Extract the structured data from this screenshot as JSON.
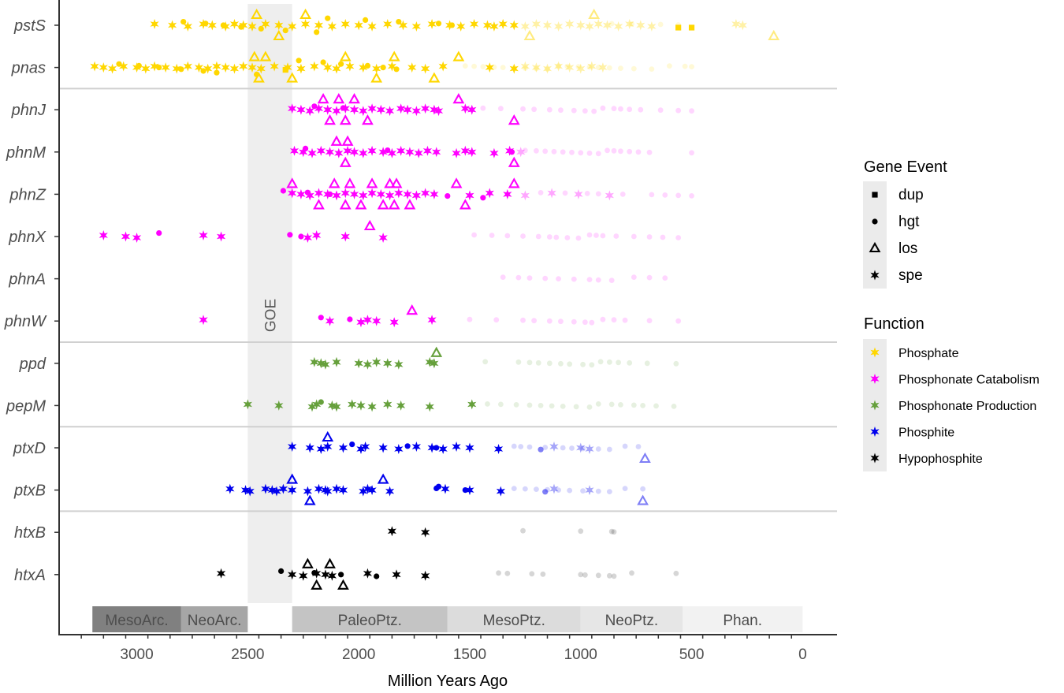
{
  "chart_data": {
    "type": "scatter",
    "xlabel": "Million Years Ago",
    "xlim": [
      3350,
      -155
    ],
    "xticks": [
      3000,
      2500,
      2000,
      1500,
      1000,
      500,
      0
    ],
    "tick_labels": [
      "3000",
      "2500",
      "2000",
      "1500",
      "1000",
      "500",
      "0"
    ],
    "goe": {
      "label": "GOE",
      "start": 2500,
      "end": 2300
    },
    "eras": [
      {
        "label": "MesoArc.",
        "start": 3200,
        "end": 2800,
        "color": "#808080"
      },
      {
        "label": "NeoArc.",
        "start": 2800,
        "end": 2500,
        "color": "#a6a6a6"
      },
      {
        "label": "PaleoPtz.",
        "start": 2300,
        "end": 1600,
        "color": "#c4c4c4"
      },
      {
        "label": "MesoPtz.",
        "start": 1600,
        "end": 1000,
        "color": "#dcdcdc"
      },
      {
        "label": "NeoPtz.",
        "start": 1000,
        "end": 541,
        "color": "#e6e6e6"
      },
      {
        "label": "Phan.",
        "start": 541,
        "end": 0,
        "color": "#f2f2f2"
      }
    ],
    "genes": [
      "pstS",
      "pnas",
      "phnJ",
      "phnM",
      "phnZ",
      "phnX",
      "phnA",
      "phnW",
      "ppd",
      "pepM",
      "ptxD",
      "ptxB",
      "htxB",
      "htxA"
    ],
    "gene_function": {
      "pstS": "Phosphate",
      "pnas": "Phosphate",
      "phnJ": "Phosphonate Catabolism",
      "phnM": "Phosphonate Catabolism",
      "phnZ": "Phosphonate Catabolism",
      "phnX": "Phosphonate Catabolism",
      "phnA": "Phosphonate Catabolism",
      "phnW": "Phosphonate Catabolism",
      "ppd": "Phosphonate Production",
      "pepM": "Phosphonate Production",
      "ptxD": "Phosphite",
      "ptxB": "Phosphite",
      "htxB": "Hypophosphite",
      "htxA": "Hypophosphite"
    },
    "separators_after": [
      "pnas",
      "phnW",
      "pepM",
      "ptxB"
    ],
    "legend_event": {
      "title": "Gene Event",
      "items": [
        {
          "key": "dup",
          "label": "dup"
        },
        {
          "key": "hgt",
          "label": "hgt"
        },
        {
          "key": "los",
          "label": "los"
        },
        {
          "key": "spe",
          "label": "spe"
        }
      ]
    },
    "legend_function": {
      "title": "Function",
      "items": [
        {
          "label": "Phosphate",
          "color": "#ffd700"
        },
        {
          "label": "Phosphonate Catabolism",
          "color": "#ff00ff"
        },
        {
          "label": "Phosphonate Production",
          "color": "#66a03c"
        },
        {
          "label": "Phosphite",
          "color": "#0000ee"
        },
        {
          "label": "Hypophosphite",
          "color": "#000000"
        }
      ]
    },
    "faint_threshold": 1300,
    "points": {
      "pstS": {
        "spe": [
          2920,
          2840,
          2770,
          2700,
          2660,
          2600,
          2560,
          2520,
          2480,
          2420,
          2360,
          2300,
          2240,
          2180,
          2120,
          2060,
          2000,
          1940,
          1870,
          1800,
          1740,
          1670,
          1590,
          1540,
          1480,
          1420,
          1390,
          1350,
          1300,
          1250,
          1200,
          1150,
          1100,
          1050,
          1000,
          960,
          920,
          880,
          830,
          780,
          730,
          680,
          300,
          270
        ],
        "hgt": [
          2790,
          2690,
          2610,
          2530,
          2440,
          2330,
          2190,
          2140,
          1970,
          1820,
          1640,
          1580
        ],
        "dup": [
          560,
          500
        ],
        "los": [
          2460,
          2360,
          2240,
          1230,
          940,
          130
        ],
        "faint": [
          860,
          770,
          640,
          560
        ]
      },
      "pnas": {
        "spe": [
          3190,
          3150,
          3110,
          3060,
          3000,
          2960,
          2920,
          2870,
          2820,
          2770,
          2720,
          2680,
          2640,
          2600,
          2560,
          2520,
          2480,
          2440,
          2380,
          2320,
          2260,
          2200,
          2140,
          2100,
          2040,
          1980,
          1920,
          1850,
          1760,
          1700,
          1620,
          1410,
          1300,
          1250,
          1200,
          1150,
          1100,
          1050,
          1000,
          950,
          900
        ],
        "hgt": [
          3080,
          2990,
          2900,
          2800,
          2700,
          2640,
          2460,
          2270,
          2160,
          2080,
          1960,
          1890,
          1830
        ],
        "dup": [
          2330
        ],
        "los": [
          2470,
          2450,
          2420,
          2300,
          2060,
          1920,
          1840,
          1660,
          1550
        ],
        "faint": [
          1520,
          1480,
          1440,
          1390,
          1350,
          1300,
          1250,
          1200,
          1150,
          1100,
          1060,
          1010,
          960,
          920,
          870,
          820,
          760,
          680,
          600,
          530,
          500
        ]
      },
      "phnJ": {
        "spe": [
          2300,
          2260,
          2220,
          2180,
          2140,
          2100,
          2060,
          2020,
          1980,
          1940,
          1900,
          1860,
          1810,
          1780,
          1740,
          1700,
          1660,
          1640,
          1520,
          1490
        ],
        "hgt": [
          2200,
          2070
        ],
        "dup": [],
        "los": [
          2160,
          2130,
          2090,
          2060,
          2020,
          1960,
          1550,
          1300
        ],
        "faint": [
          1440,
          1360,
          1260,
          1210,
          1140,
          1090,
          1030,
          980,
          940,
          900,
          850,
          820,
          780,
          730,
          640,
          560,
          500
        ]
      },
      "phnM": {
        "spe": [
          2290,
          2250,
          2210,
          2170,
          2130,
          2090,
          2050,
          2020,
          1980,
          1940,
          1890,
          1850,
          1810,
          1770,
          1730,
          1690,
          1650,
          1560,
          1520,
          1490,
          1390,
          1320,
          1270
        ],
        "hgt": [
          2240,
          1870,
          1310
        ],
        "dup": [],
        "los": [
          2100,
          2060,
          2050,
          1300
        ],
        "faint": [
          1250,
          1200,
          1160,
          1120,
          1080,
          1040,
          1000,
          960,
          920,
          880,
          850,
          820,
          780,
          740,
          690,
          500
        ]
      },
      "phnZ": {
        "spe": [
          2300,
          2260,
          2220,
          2180,
          2140,
          2100,
          2060,
          2020,
          1980,
          1940,
          1900,
          1860,
          1820,
          1780,
          1740,
          1700,
          1660,
          1500,
          1410,
          1330,
          1250,
          1130,
          1010,
          870
        ],
        "hgt": [
          2340,
          2230,
          2130,
          1600,
          1440
        ],
        "dup": [],
        "los": [
          2300,
          2180,
          2110,
          2060,
          2040,
          1990,
          1940,
          1890,
          1860,
          1840,
          1830,
          1770,
          1560,
          1520,
          1300
        ],
        "faint": [
          1180,
          1070,
          970,
          920,
          810,
          680,
          620,
          560,
          500
        ]
      },
      "phnX": {
        "spe": [
          3150,
          3050,
          3000,
          2700,
          2620,
          2230,
          2190,
          2060,
          1890
        ],
        "hgt": [
          2900,
          2310,
          2260
        ],
        "dup": [],
        "los": [
          1950
        ],
        "faint": [
          1480,
          1400,
          1330,
          1260,
          1190,
          1140,
          1110,
          1060,
          1010,
          960,
          930,
          900,
          840,
          760,
          690,
          630,
          560
        ]
      },
      "phnA": {
        "spe": [],
        "hgt": [],
        "dup": [],
        "los": [],
        "faint": [
          1350,
          1280,
          1230,
          1160,
          1100,
          1030,
          960,
          920,
          860,
          760,
          690,
          620
        ]
      },
      "phnW": {
        "spe": [
          2700,
          2130,
          1990,
          1960,
          1920,
          1840,
          1670
        ],
        "hgt": [
          2170,
          2040
        ],
        "dup": [],
        "los": [
          1760
        ],
        "faint": [
          1500,
          1380,
          1260,
          1210,
          1140,
          1090,
          1030,
          980,
          950,
          900,
          850,
          800,
          690,
          560
        ]
      },
      "ppd": {
        "spe": [
          2200,
          2170,
          2150,
          2100,
          2000,
          1960,
          1920,
          1870,
          1820,
          1680,
          1660
        ],
        "hgt": [],
        "dup": [],
        "los": [
          1650
        ],
        "faint": [
          1430,
          1280,
          1230,
          1190,
          1140,
          1090,
          1050,
          990,
          950,
          910,
          870,
          830,
          780,
          700,
          570
        ]
      },
      "pepM": {
        "spe": [
          2500,
          2360,
          2210,
          2190,
          2120,
          2100,
          2030,
          1990,
          1940,
          1870,
          1810,
          1680,
          1490
        ],
        "hgt": [
          2170
        ],
        "dup": [],
        "los": [],
        "faint": [
          1420,
          1360,
          1290,
          1230,
          1180,
          1130,
          1080,
          1020,
          960,
          920,
          860,
          820,
          760,
          720,
          660,
          580
        ]
      },
      "ptxD": {
        "spe": [
          2300,
          2220,
          2170,
          2140,
          2070,
          1990,
          1970,
          1890,
          1820,
          1740,
          1670,
          1620,
          1560,
          1500,
          1370,
          1120,
          1000,
          960
        ],
        "hgt": [
          2030,
          1780,
          1650,
          1180
        ],
        "dup": [],
        "los": [
          2140,
          710
        ],
        "faint": [
          1300,
          1270,
          1230,
          1160,
          1080,
          1040,
          990,
          920,
          870,
          800,
          740
        ]
      },
      "ptxB": {
        "spe": [
          2580,
          2510,
          2490,
          2420,
          2390,
          2370,
          2340,
          2300,
          2230,
          2180,
          2150,
          2140,
          2100,
          2070,
          1980,
          1960,
          1940,
          1860,
          1610,
          1500,
          1360,
          1120,
          960
        ],
        "hgt": [
          1640,
          1650,
          1520,
          1160
        ],
        "dup": [],
        "los": [
          2300,
          2220,
          1890,
          720
        ],
        "faint": [
          1300,
          1250,
          1200,
          1150,
          1100,
          1050,
          990,
          920,
          870,
          800,
          720
        ]
      },
      "htxB": {
        "spe": [
          1850,
          1700
        ],
        "hgt": [],
        "dup": [],
        "los": [],
        "faint": [
          1260,
          1000,
          860,
          850
        ]
      },
      "htxA": {
        "spe": [
          2620,
          2300,
          2250,
          2190,
          2150,
          2120,
          1960,
          1830,
          1700
        ],
        "hgt": [
          2350,
          2200,
          2080,
          1920
        ],
        "dup": [],
        "los": [
          2230,
          2190,
          2130,
          2070
        ],
        "faint": [
          1370,
          1330,
          1220,
          1170,
          1000,
          980,
          920,
          870,
          850,
          770,
          570
        ]
      }
    }
  }
}
